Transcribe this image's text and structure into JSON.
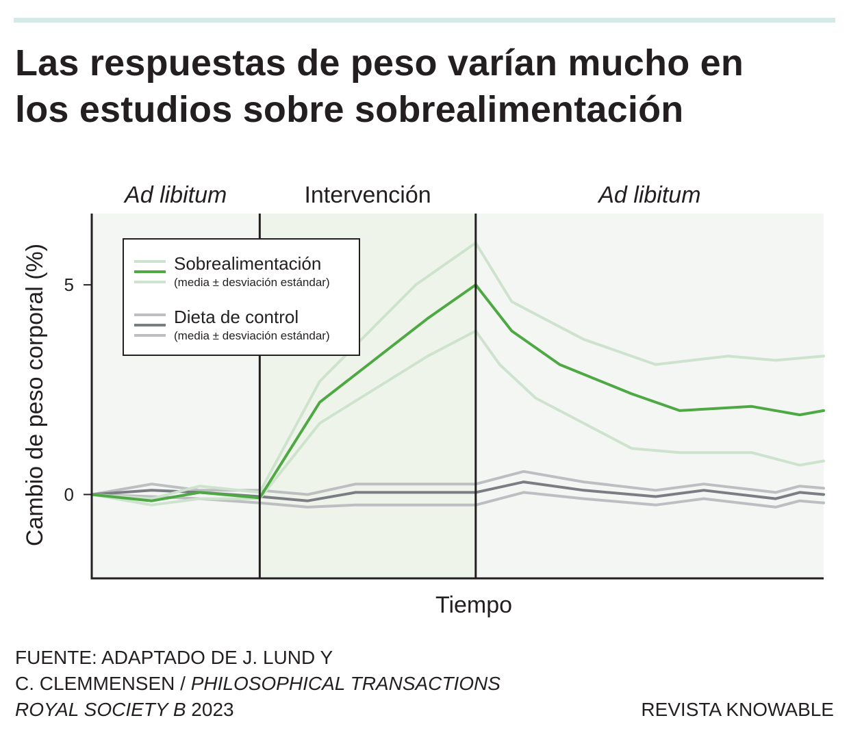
{
  "title": {
    "line1": "Las respuestas de peso varían mucho en",
    "line2": "los estudios sobre sobrealimentación"
  },
  "chart_data": {
    "type": "line",
    "phases": [
      "Ad libitum",
      "Intervención",
      "Ad libitum"
    ],
    "xlabel": "Tiempo",
    "ylabel": "Cambio de peso corporal (%)",
    "yticks": [
      0,
      5
    ],
    "ylim": [
      -2,
      6.7
    ],
    "xlim": [
      0,
      30.5
    ],
    "phase_boundaries": [
      7,
      16
    ],
    "grid": false,
    "legend": {
      "position": "top-left",
      "entries": [
        {
          "name": "Sobrealimentación",
          "note": "(media ± desviación estándar)"
        },
        {
          "name": "Dieta de control",
          "note": "(media ± desviación estándar)"
        }
      ]
    },
    "series": [
      {
        "name": "Sobrealimentación (media)",
        "group": "overfeeding",
        "role": "mean",
        "x": [
          0,
          2.5,
          4.5,
          7,
          9.5,
          14,
          16,
          17.5,
          19.5,
          22.5,
          24.5,
          27.5,
          29.5,
          30.5
        ],
        "values": [
          0,
          -0.15,
          0.05,
          -0.08,
          2.2,
          4.2,
          5.0,
          3.9,
          3.1,
          2.4,
          2.0,
          2.1,
          1.9,
          2.0
        ]
      },
      {
        "name": "Sobrealimentación (+1 DE)",
        "group": "overfeeding",
        "role": "upper",
        "x": [
          0,
          2.5,
          4.5,
          7,
          9.5,
          13.5,
          16,
          17.5,
          20.5,
          23.5,
          26.5,
          28.5,
          30.5
        ],
        "values": [
          0,
          -0.1,
          0.2,
          0.05,
          2.7,
          5.0,
          6.0,
          4.6,
          3.7,
          3.1,
          3.3,
          3.2,
          3.3
        ]
      },
      {
        "name": "Sobrealimentación (-1 DE)",
        "group": "overfeeding",
        "role": "lower",
        "x": [
          0,
          2.5,
          4.5,
          7,
          9.5,
          14,
          16,
          17,
          18.5,
          22.5,
          24.5,
          27.5,
          29.5,
          30.5
        ],
        "values": [
          0,
          -0.25,
          -0.1,
          -0.1,
          1.7,
          3.3,
          3.9,
          3.1,
          2.3,
          1.1,
          1.0,
          1.0,
          0.7,
          0.8
        ]
      },
      {
        "name": "Dieta de control (media)",
        "group": "control",
        "role": "mean",
        "x": [
          0,
          2.5,
          4.5,
          7,
          9,
          11,
          16,
          18,
          20.5,
          23.5,
          25.5,
          28.5,
          29.5,
          30.5
        ],
        "values": [
          0,
          0.1,
          0.05,
          -0.05,
          -0.15,
          0.05,
          0.05,
          0.3,
          0.1,
          -0.05,
          0.1,
          -0.1,
          0.05,
          0.0
        ]
      },
      {
        "name": "Dieta de control (+1 DE)",
        "group": "control",
        "role": "upper",
        "x": [
          0,
          2.5,
          4.5,
          7,
          9,
          11,
          16,
          18,
          20.5,
          23.5,
          25.5,
          28.5,
          29.5,
          30.5
        ],
        "values": [
          0,
          0.25,
          0.1,
          0.1,
          0.0,
          0.25,
          0.25,
          0.55,
          0.3,
          0.1,
          0.25,
          0.05,
          0.2,
          0.15
        ]
      },
      {
        "name": "Dieta de control (-1 DE)",
        "group": "control",
        "role": "lower",
        "x": [
          0,
          2.5,
          4.5,
          7,
          9,
          11,
          16,
          18,
          20.5,
          23.5,
          25.5,
          28.5,
          29.5,
          30.5
        ],
        "values": [
          0,
          -0.05,
          -0.1,
          -0.2,
          -0.3,
          -0.25,
          -0.25,
          0.05,
          -0.1,
          -0.25,
          -0.1,
          -0.3,
          -0.15,
          -0.2
        ]
      }
    ]
  },
  "colors": {
    "overfeeding_mean": "#4ea944",
    "overfeeding_sd": "#cde3cd",
    "control_mean": "#7a7e84",
    "control_sd": "#bdbec2",
    "bg_outer": "#f4f6f3",
    "bg_intervention": "#eef4ea",
    "accent_rule": "#d5e9e6"
  },
  "source": {
    "line1": "FUENTE: ADAPTADO DE J. LUND Y",
    "line2_plain": "C. CLEMMENSEN / ",
    "line2_italic": "PHILOSOPHICAL TRANSACTIONS",
    "line3_italic": "ROYAL SOCIETY B",
    "line3_plain": " 2023"
  },
  "brand": "REVISTA KNOWABLE"
}
